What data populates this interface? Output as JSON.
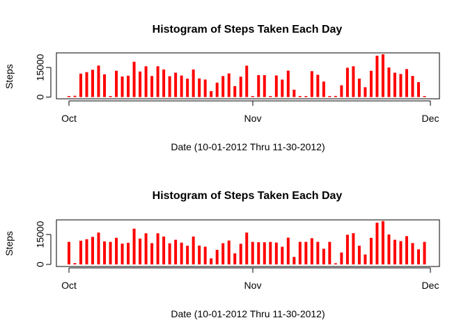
{
  "chart_data": [
    {
      "type": "bar",
      "title": "Histogram of Steps Taken Each Day",
      "xlabel": "Date (10-01-2012 Thru 11-30-2012)",
      "ylabel": "Steps",
      "x_tick_labels": [
        "Oct",
        "Nov",
        "Dec"
      ],
      "y_tick_labels": [
        "0",
        "15000"
      ],
      "ylim": [
        0,
        22000
      ],
      "bar_color": "#ff0000",
      "x": [
        "2012-10-01",
        "2012-10-02",
        "2012-10-03",
        "2012-10-04",
        "2012-10-05",
        "2012-10-06",
        "2012-10-07",
        "2012-10-08",
        "2012-10-09",
        "2012-10-10",
        "2012-10-11",
        "2012-10-12",
        "2012-10-13",
        "2012-10-14",
        "2012-10-15",
        "2012-10-16",
        "2012-10-17",
        "2012-10-18",
        "2012-10-19",
        "2012-10-20",
        "2012-10-21",
        "2012-10-22",
        "2012-10-23",
        "2012-10-24",
        "2012-10-25",
        "2012-10-26",
        "2012-10-27",
        "2012-10-28",
        "2012-10-29",
        "2012-10-30",
        "2012-10-31",
        "2012-11-01",
        "2012-11-02",
        "2012-11-03",
        "2012-11-04",
        "2012-11-05",
        "2012-11-06",
        "2012-11-07",
        "2012-11-08",
        "2012-11-09",
        "2012-11-10",
        "2012-11-11",
        "2012-11-12",
        "2012-11-13",
        "2012-11-14",
        "2012-11-15",
        "2012-11-16",
        "2012-11-17",
        "2012-11-18",
        "2012-11-19",
        "2012-11-20",
        "2012-11-21",
        "2012-11-22",
        "2012-11-23",
        "2012-11-24",
        "2012-11-25",
        "2012-11-26",
        "2012-11-27",
        "2012-11-28",
        "2012-11-29",
        "2012-11-30"
      ],
      "values": [
        0,
        126,
        11352,
        12116,
        13294,
        15420,
        11015,
        0,
        12811,
        9900,
        10304,
        17382,
        12426,
        15098,
        10139,
        15084,
        13452,
        10056,
        11829,
        10395,
        8821,
        13460,
        8918,
        8355,
        2492,
        6778,
        10119,
        11458,
        5018,
        9819,
        15414,
        0,
        10600,
        10571,
        0,
        10439,
        8334,
        12883,
        3219,
        0,
        0,
        12608,
        10765,
        7336,
        0,
        41,
        5441,
        14339,
        15110,
        8841,
        4472,
        12787,
        20427,
        21194,
        14478,
        11834,
        11162,
        13646,
        10183,
        7047,
        0
      ]
    },
    {
      "type": "bar",
      "title": "Histogram of Steps Taken Each Day",
      "xlabel": "Date (10-01-2012 Thru 11-30-2012)",
      "ylabel": "Steps",
      "x_tick_labels": [
        "Oct",
        "Nov",
        "Dec"
      ],
      "y_tick_labels": [
        "0",
        "15000"
      ],
      "ylim": [
        0,
        22000
      ],
      "bar_color": "#ff0000",
      "x": [
        "2012-10-01",
        "2012-10-02",
        "2012-10-03",
        "2012-10-04",
        "2012-10-05",
        "2012-10-06",
        "2012-10-07",
        "2012-10-08",
        "2012-10-09",
        "2012-10-10",
        "2012-10-11",
        "2012-10-12",
        "2012-10-13",
        "2012-10-14",
        "2012-10-15",
        "2012-10-16",
        "2012-10-17",
        "2012-10-18",
        "2012-10-19",
        "2012-10-20",
        "2012-10-21",
        "2012-10-22",
        "2012-10-23",
        "2012-10-24",
        "2012-10-25",
        "2012-10-26",
        "2012-10-27",
        "2012-10-28",
        "2012-10-29",
        "2012-10-30",
        "2012-10-31",
        "2012-11-01",
        "2012-11-02",
        "2012-11-03",
        "2012-11-04",
        "2012-11-05",
        "2012-11-06",
        "2012-11-07",
        "2012-11-08",
        "2012-11-09",
        "2012-11-10",
        "2012-11-11",
        "2012-11-12",
        "2012-11-13",
        "2012-11-14",
        "2012-11-15",
        "2012-11-16",
        "2012-11-17",
        "2012-11-18",
        "2012-11-19",
        "2012-11-20",
        "2012-11-21",
        "2012-11-22",
        "2012-11-23",
        "2012-11-24",
        "2012-11-25",
        "2012-11-26",
        "2012-11-27",
        "2012-11-28",
        "2012-11-29",
        "2012-11-30"
      ],
      "values": [
        10766,
        126,
        11352,
        12116,
        13294,
        15420,
        11015,
        10766,
        12811,
        9900,
        10304,
        17382,
        12426,
        15098,
        10139,
        15084,
        13452,
        10056,
        11829,
        10395,
        8821,
        13460,
        8918,
        8355,
        2492,
        6778,
        10119,
        11458,
        5018,
        9819,
        15414,
        10766,
        10600,
        10571,
        10766,
        10439,
        8334,
        12883,
        3219,
        10766,
        10766,
        12608,
        10765,
        7336,
        10766,
        41,
        5441,
        14339,
        15110,
        8841,
        4472,
        12787,
        20427,
        21194,
        14478,
        11834,
        11162,
        13646,
        10183,
        7047,
        10766
      ]
    }
  ]
}
